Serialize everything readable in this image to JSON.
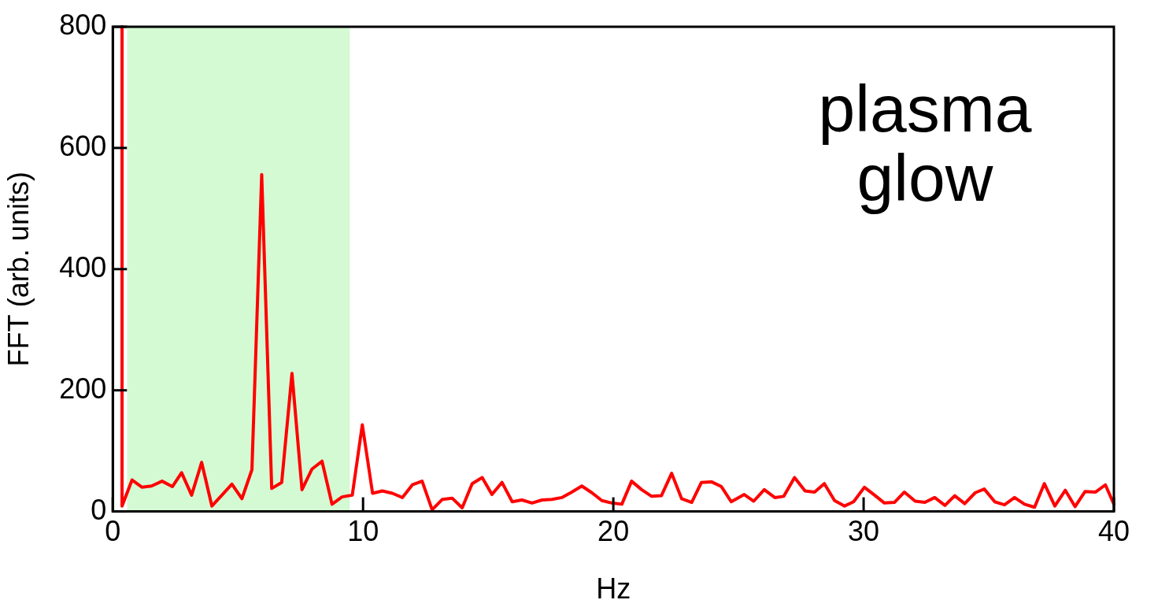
{
  "chart_data": {
    "type": "line",
    "xlabel": "Hz",
    "ylabel": "FFT (arb. units)",
    "annotations": [
      "plasma glow"
    ],
    "xlim": [
      0,
      40
    ],
    "xticks": [
      0,
      10,
      20,
      30,
      40
    ],
    "ylim": [
      0,
      800
    ],
    "yticks": [
      0,
      200,
      400,
      600,
      800
    ],
    "grid": false,
    "legend": false,
    "marker": "none",
    "line_style": "solid",
    "bands": [
      {
        "axis": "x",
        "from": 0.57,
        "to": 9.47,
        "color": "#d4fad4"
      }
    ],
    "series": [
      {
        "color": "#ff0000",
        "x": [
          0.37,
          0.37,
          0.77,
          1.17,
          1.55,
          1.97,
          2.38,
          2.75,
          3.15,
          3.55,
          3.96,
          4.36,
          4.76,
          5.16,
          5.56,
          5.95,
          6.35,
          6.75,
          7.16,
          7.56,
          7.96,
          8.36,
          8.76,
          9.16,
          9.57,
          9.97,
          10.38,
          10.77,
          11.17,
          11.57,
          11.97,
          12.36,
          12.76,
          13.17,
          13.56,
          13.96,
          14.36,
          14.76,
          15.15,
          15.55,
          15.96,
          16.35,
          16.75,
          17.15,
          17.55,
          17.94,
          18.34,
          18.74,
          19.14,
          19.54,
          19.94,
          20.34,
          20.73,
          21.13,
          21.53,
          21.92,
          22.33,
          22.73,
          23.13,
          23.52,
          23.92,
          24.32,
          24.71,
          25.23,
          25.61,
          26.03,
          26.45,
          26.81,
          27.24,
          27.66,
          28.04,
          28.43,
          28.84,
          29.24,
          29.6,
          30.03,
          30.44,
          30.83,
          31.23,
          31.63,
          32.06,
          32.45,
          32.84,
          33.25,
          33.64,
          34.04,
          34.46,
          34.82,
          35.24,
          35.63,
          36.03,
          36.43,
          36.83,
          37.22,
          37.64,
          38.06,
          38.45,
          38.85,
          39.27,
          39.66,
          40
        ],
        "values": [
          800,
          9,
          52,
          40,
          42,
          50,
          41,
          64,
          27,
          81,
          9,
          27,
          45,
          21,
          69,
          556,
          38,
          48,
          228,
          36,
          70,
          83,
          12,
          24,
          27,
          143,
          30,
          34,
          30,
          23,
          44,
          50,
          3,
          20,
          22,
          6,
          46,
          56,
          28,
          48,
          16,
          19,
          14,
          19,
          20,
          23,
          32,
          42,
          31,
          18,
          14,
          12,
          50,
          36,
          25,
          26,
          63,
          21,
          15,
          48,
          49,
          41,
          16,
          28,
          17,
          36,
          23,
          25,
          56,
          34,
          32,
          46,
          18,
          9,
          16,
          40,
          27,
          14,
          15,
          32,
          17,
          15,
          23,
          10,
          26,
          13,
          31,
          37,
          16,
          11,
          23,
          12,
          7,
          46,
          9,
          35,
          8,
          33,
          32,
          44,
          12
        ]
      }
    ]
  }
}
